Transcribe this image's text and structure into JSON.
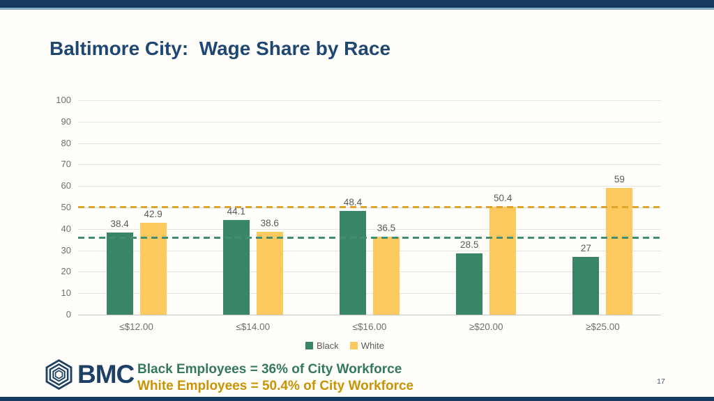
{
  "slide": {
    "title": "Baltimore City:  Wage Share by Race",
    "page_number": "17",
    "logo": {
      "text": "BMC"
    },
    "footer": {
      "line1": "Black Employees = 36% of City Workforce",
      "line2": "White Employees = 50.4% of City Workforce"
    }
  },
  "colors": {
    "navy_bar": "#17395f",
    "accent_light_blue": "#85abc8",
    "title_navy": "#1e4872",
    "black_series_green": "#3a8568",
    "white_series_yellow": "#fcc95e",
    "ref_line_green": "#3f8f72",
    "ref_line_gold": "#e0a42b",
    "footer_green": "#34785f",
    "footer_gold": "#c89404",
    "axis_text_gray": "#6f6f6f",
    "data_label_gray": "#595959",
    "gridline_gray": "#e2e2e2"
  },
  "chart_data": {
    "type": "bar",
    "title": "",
    "xlabel": "",
    "ylabel": "",
    "categories": [
      "≤$12.00",
      "≤$14.00",
      "≤$16.00",
      "≥$20.00",
      "≥$25.00"
    ],
    "series": [
      {
        "name": "Black",
        "color": "#3a8568",
        "values": [
          38.4,
          44.1,
          48.4,
          28.5,
          27
        ]
      },
      {
        "name": "White",
        "color": "#fcc95e",
        "values": [
          42.9,
          38.6,
          36.5,
          50.4,
          59
        ]
      }
    ],
    "reference_lines": [
      {
        "value": 36,
        "color": "#3f8f72",
        "style": "dashed"
      },
      {
        "value": 50.4,
        "color": "#e0a42b",
        "style": "dashed"
      }
    ],
    "ylim": [
      0,
      100
    ],
    "ytick_step": 10,
    "grid": true,
    "legend_position": "bottom",
    "data_labels": true
  }
}
